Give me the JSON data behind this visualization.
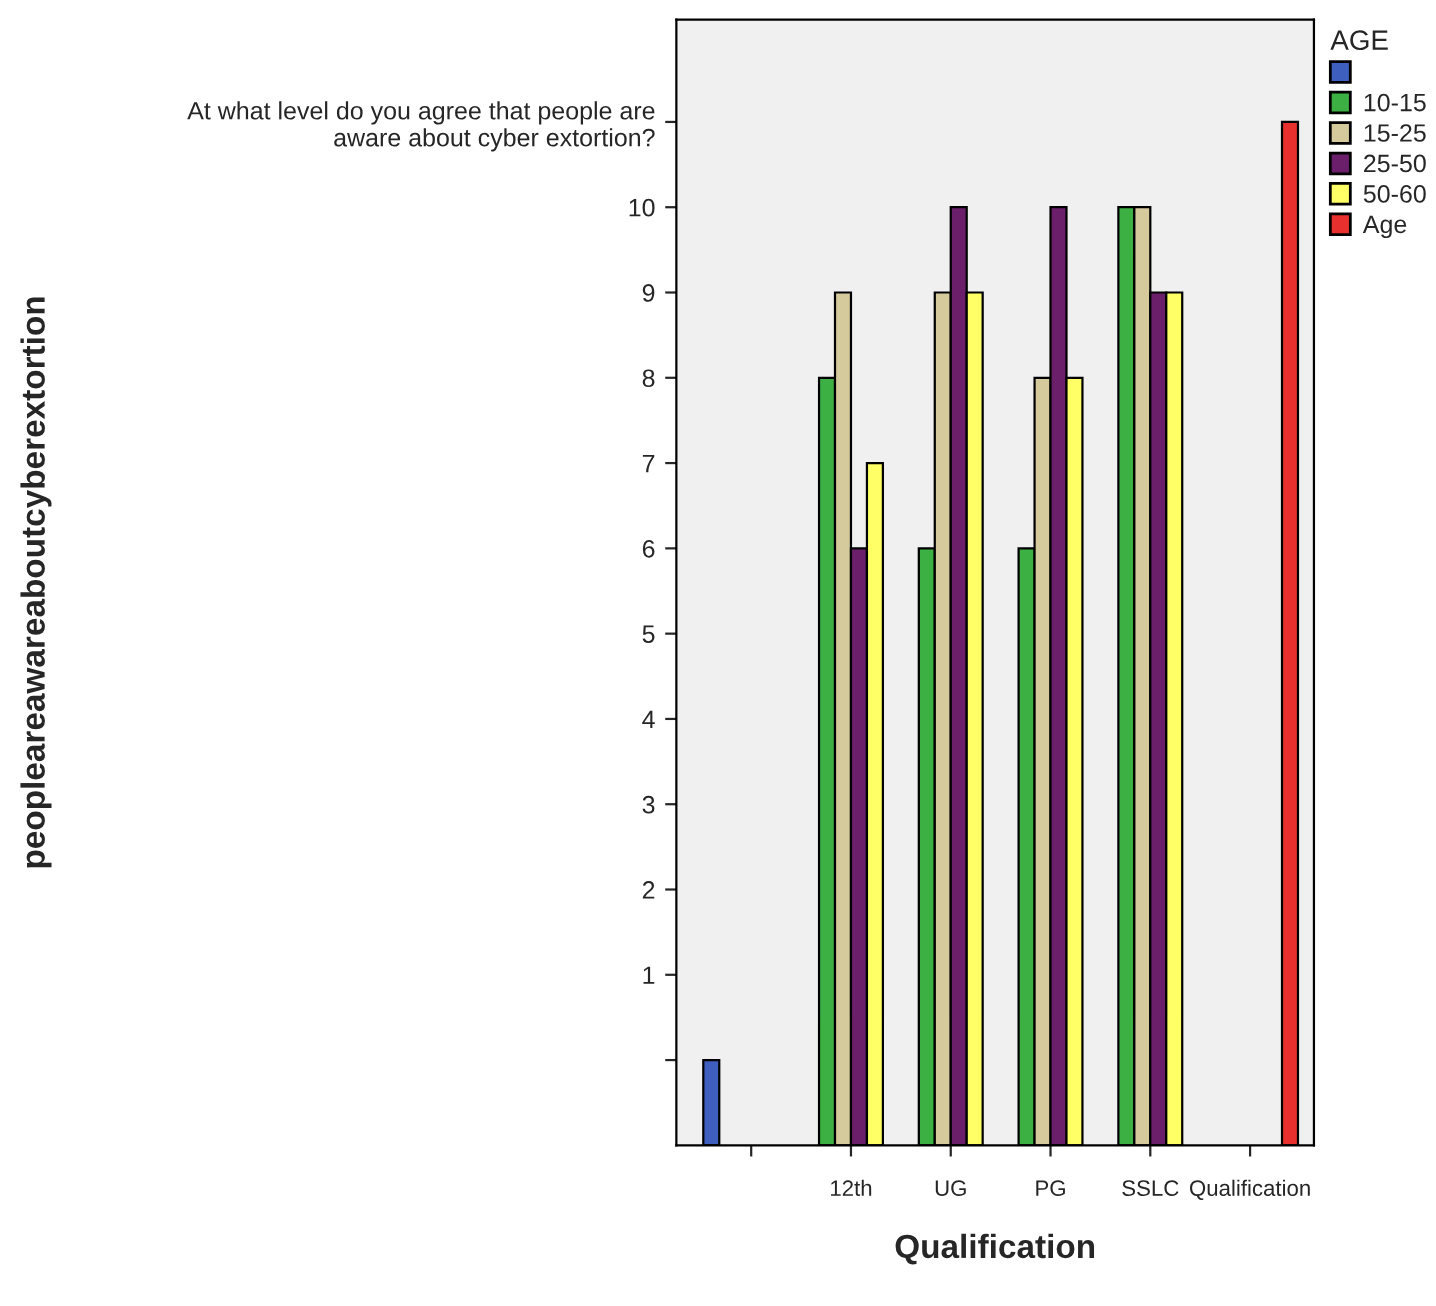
{
  "chart_data": {
    "type": "bar",
    "xlabel": "Qualification",
    "ylabel": "peopleareawareaboutcyberextortion",
    "legend_title": "AGE",
    "legend": "right",
    "grid": false,
    "categories": [
      null,
      "12th",
      "UG",
      "PG",
      "SSLC",
      "Qualification"
    ],
    "series": [
      {
        "color": "#3f5fbf",
        "values": [
          1,
          null,
          null,
          null,
          null,
          null
        ],
        "base": [
          -1,
          null,
          null,
          null,
          null,
          null
        ]
      },
      {
        "name": "10-15",
        "color": "#3cb043",
        "values": [
          null,
          9,
          7,
          7,
          11,
          null
        ],
        "base": [
          null,
          -1,
          -1,
          -1,
          -1,
          null
        ]
      },
      {
        "name": "15-25",
        "color": "#d4ca9c",
        "values": [
          null,
          10,
          10,
          9,
          11,
          null
        ],
        "base": [
          null,
          -1,
          -1,
          -1,
          -1,
          null
        ]
      },
      {
        "name": "25-50",
        "color": "#6b1f6b",
        "values": [
          null,
          7,
          11,
          11,
          10,
          null
        ],
        "base": [
          null,
          -1,
          -1,
          -1,
          -1,
          null
        ]
      },
      {
        "name": "50-60",
        "color": "#ffff66",
        "values": [
          null,
          8,
          10,
          9,
          10,
          null
        ],
        "base": [
          null,
          -1,
          -1,
          -1,
          -1,
          null
        ]
      },
      {
        "name": "Age",
        "color": "#e8312e",
        "values": [
          null,
          null,
          null,
          null,
          null,
          12
        ],
        "base": [
          null,
          null,
          null,
          null,
          null,
          -1
        ]
      }
    ],
    "ylim": [
      -1,
      12.2
    ],
    "yticks": [
      {
        "value": 0,
        "label": null
      },
      1,
      2,
      3,
      4,
      5,
      6,
      7,
      8,
      9,
      10,
      {
        "value": 11,
        "label": "At what level do you agree that people are\naware about cyber extortion?"
      }
    ]
  }
}
